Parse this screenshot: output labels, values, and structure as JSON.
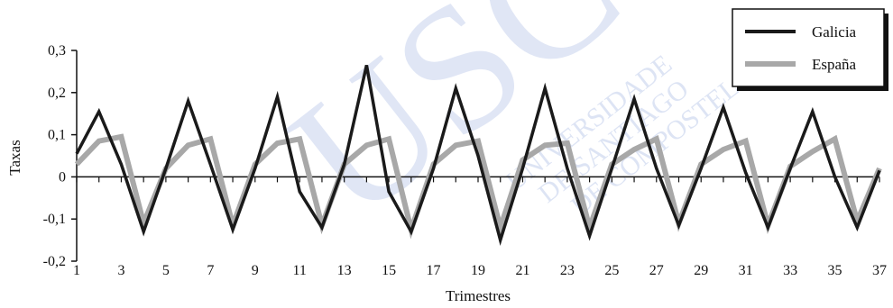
{
  "watermark": {
    "mark": "USC",
    "text_line1": "UNIVERSIDADE",
    "text_line2": "DE SANTIAGO",
    "text_line3": "DE COMPOSTELA",
    "color": "#c8d3ee"
  },
  "chart_data": {
    "type": "line",
    "title": "",
    "xlabel": "Trimestres",
    "ylabel": "Taxas",
    "xlim": [
      1,
      37
    ],
    "ylim": [
      -0.2,
      0.3
    ],
    "x_tick_labels": [
      "1",
      "3",
      "5",
      "7",
      "9",
      "11",
      "13",
      "15",
      "17",
      "19",
      "21",
      "23",
      "25",
      "27",
      "29",
      "31",
      "33",
      "35",
      "37"
    ],
    "y_tick_labels": [
      "0,3",
      "0,2",
      "0,1",
      "0",
      "-0,1",
      "-0,2"
    ],
    "y_ticks": [
      0.3,
      0.2,
      0.1,
      0,
      -0.1,
      -0.2
    ],
    "x": [
      1,
      2,
      3,
      4,
      5,
      6,
      7,
      8,
      9,
      10,
      11,
      12,
      13,
      14,
      15,
      16,
      17,
      18,
      19,
      20,
      21,
      22,
      23,
      24,
      25,
      26,
      27,
      28,
      29,
      30,
      31,
      32,
      33,
      34,
      35,
      36,
      37
    ],
    "legend_position": "top-right",
    "grid": false,
    "series": [
      {
        "name": "Galicia",
        "color": "#1a1a1a",
        "values": [
          0.055,
          0.155,
          0.03,
          -0.13,
          0.02,
          0.18,
          0.03,
          -0.125,
          0.02,
          0.19,
          -0.035,
          -0.12,
          0.03,
          0.265,
          -0.035,
          -0.13,
          0.02,
          0.21,
          0.05,
          -0.15,
          0.02,
          0.21,
          0.02,
          -0.14,
          0.02,
          0.185,
          0.02,
          -0.115,
          0.02,
          0.165,
          0.01,
          -0.12,
          0.02,
          0.155,
          0.0,
          -0.12,
          0.015
        ]
      },
      {
        "name": "España",
        "color": "#a8a8a8",
        "values": [
          0.03,
          0.085,
          0.095,
          -0.11,
          0.02,
          0.075,
          0.09,
          -0.115,
          0.03,
          0.08,
          0.09,
          -0.115,
          0.03,
          0.075,
          0.09,
          -0.125,
          0.03,
          0.075,
          0.085,
          -0.12,
          0.04,
          0.075,
          0.08,
          -0.12,
          0.03,
          0.065,
          0.09,
          -0.11,
          0.03,
          0.065,
          0.085,
          -0.115,
          0.025,
          0.06,
          0.09,
          -0.105,
          0.02
        ]
      }
    ]
  }
}
